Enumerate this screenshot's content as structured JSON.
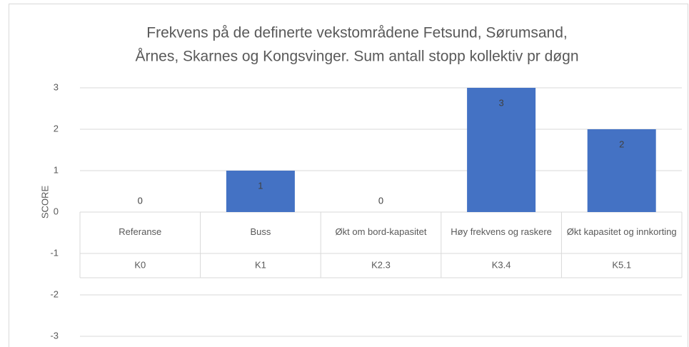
{
  "chart_data": {
    "type": "bar",
    "title": [
      "Frekvens på de definerte vekstområdene Fetsund, Sørumsand,",
      "Årnes, Skarnes og Kongsvinger. Sum antall stopp kollektiv pr døgn"
    ],
    "y_label": "SCORE",
    "categories": [
      "Referanse",
      "Buss",
      "Økt om bord-kapasitet",
      "Høy frekvens og raskere",
      "Økt kapasitet og innkorting"
    ],
    "category_codes": [
      "K0",
      "K1",
      "K2.3",
      "K3.4",
      "K5.1"
    ],
    "values": [
      0,
      1,
      0,
      3,
      2
    ],
    "color": "#4472c4",
    "ylim": [
      -3,
      3
    ],
    "yticks": [
      -3,
      -2,
      -1,
      0,
      1,
      2,
      3
    ],
    "grid": true
  }
}
